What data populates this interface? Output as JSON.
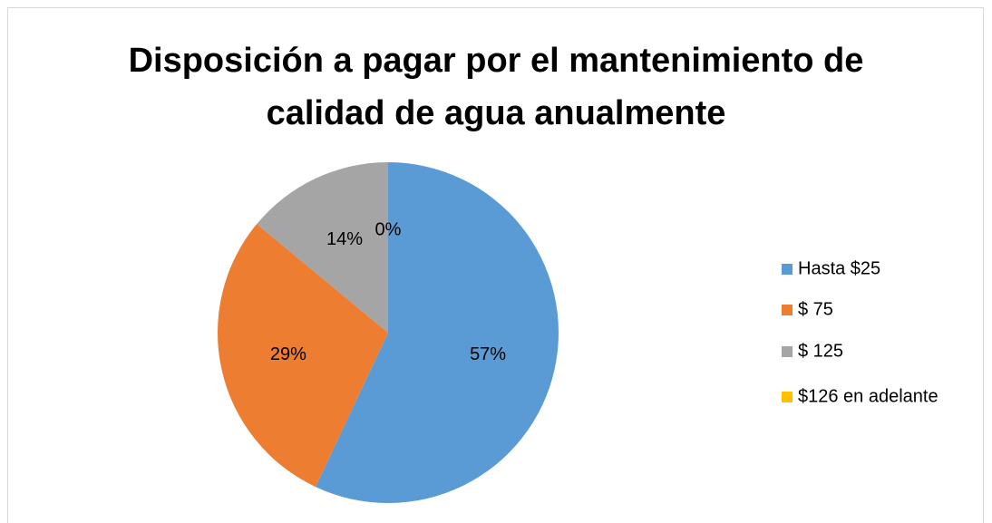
{
  "chart_data": {
    "type": "pie",
    "title": "Disposición a pagar por el mantenimiento de calidad de agua anualmente",
    "categories": [
      "Hasta $25",
      "$ 75",
      "$ 125",
      "$126 en adelante"
    ],
    "values": [
      57,
      29,
      14,
      0
    ],
    "value_labels": [
      "57%",
      "29%",
      "14%",
      "0%"
    ],
    "colors": [
      "#5b9bd5",
      "#ed7d31",
      "#a5a5a5",
      "#ffc000"
    ],
    "legend": "right"
  }
}
